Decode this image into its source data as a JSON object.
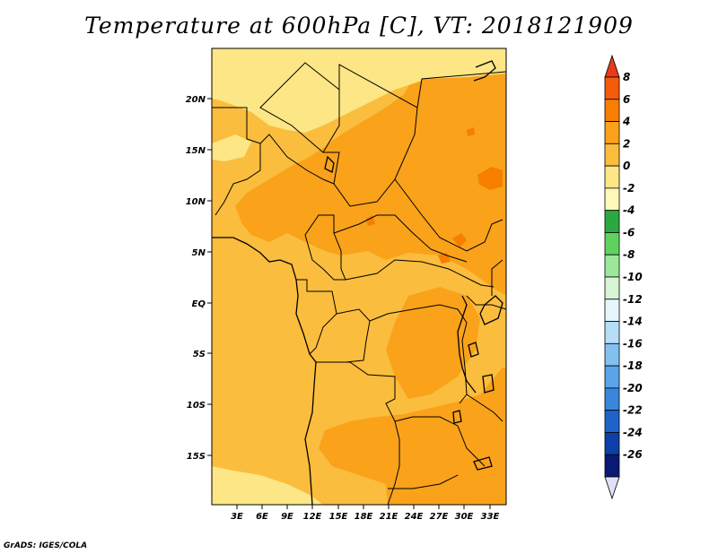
{
  "title": "Temperature at 600hPa [C], VT: 2018121909",
  "credit": "GrADS: IGES/COLA",
  "map": {
    "lat_labels": [
      "20N",
      "15N",
      "10N",
      "5N",
      "EQ",
      "5S",
      "10S",
      "15S"
    ],
    "lon_labels": [
      "3E",
      "6E",
      "9E",
      "12E",
      "15E",
      "18E",
      "21E",
      "24E",
      "27E",
      "30E",
      "33E"
    ]
  },
  "colorbar": {
    "labels": [
      "8",
      "6",
      "4",
      "2",
      "0",
      "-2",
      "-4",
      "-6",
      "-8",
      "-10",
      "-12",
      "-14",
      "-16",
      "-18",
      "-20",
      "-22",
      "-24",
      "-26"
    ],
    "colors": [
      "#e83a1a",
      "#f55b0a",
      "#f77f00",
      "#f9a21a",
      "#fbbd3d",
      "#fde685",
      "#fff8b8",
      "#2ba840",
      "#5fd35d",
      "#9be89a",
      "#d7f5d4",
      "#e6f6fc",
      "#b6def7",
      "#82c0ef",
      "#5aa4e8",
      "#3a86dc",
      "#1e63c9",
      "#0c40a8",
      "#0a1a74",
      "#e0e0f7"
    ]
  }
}
